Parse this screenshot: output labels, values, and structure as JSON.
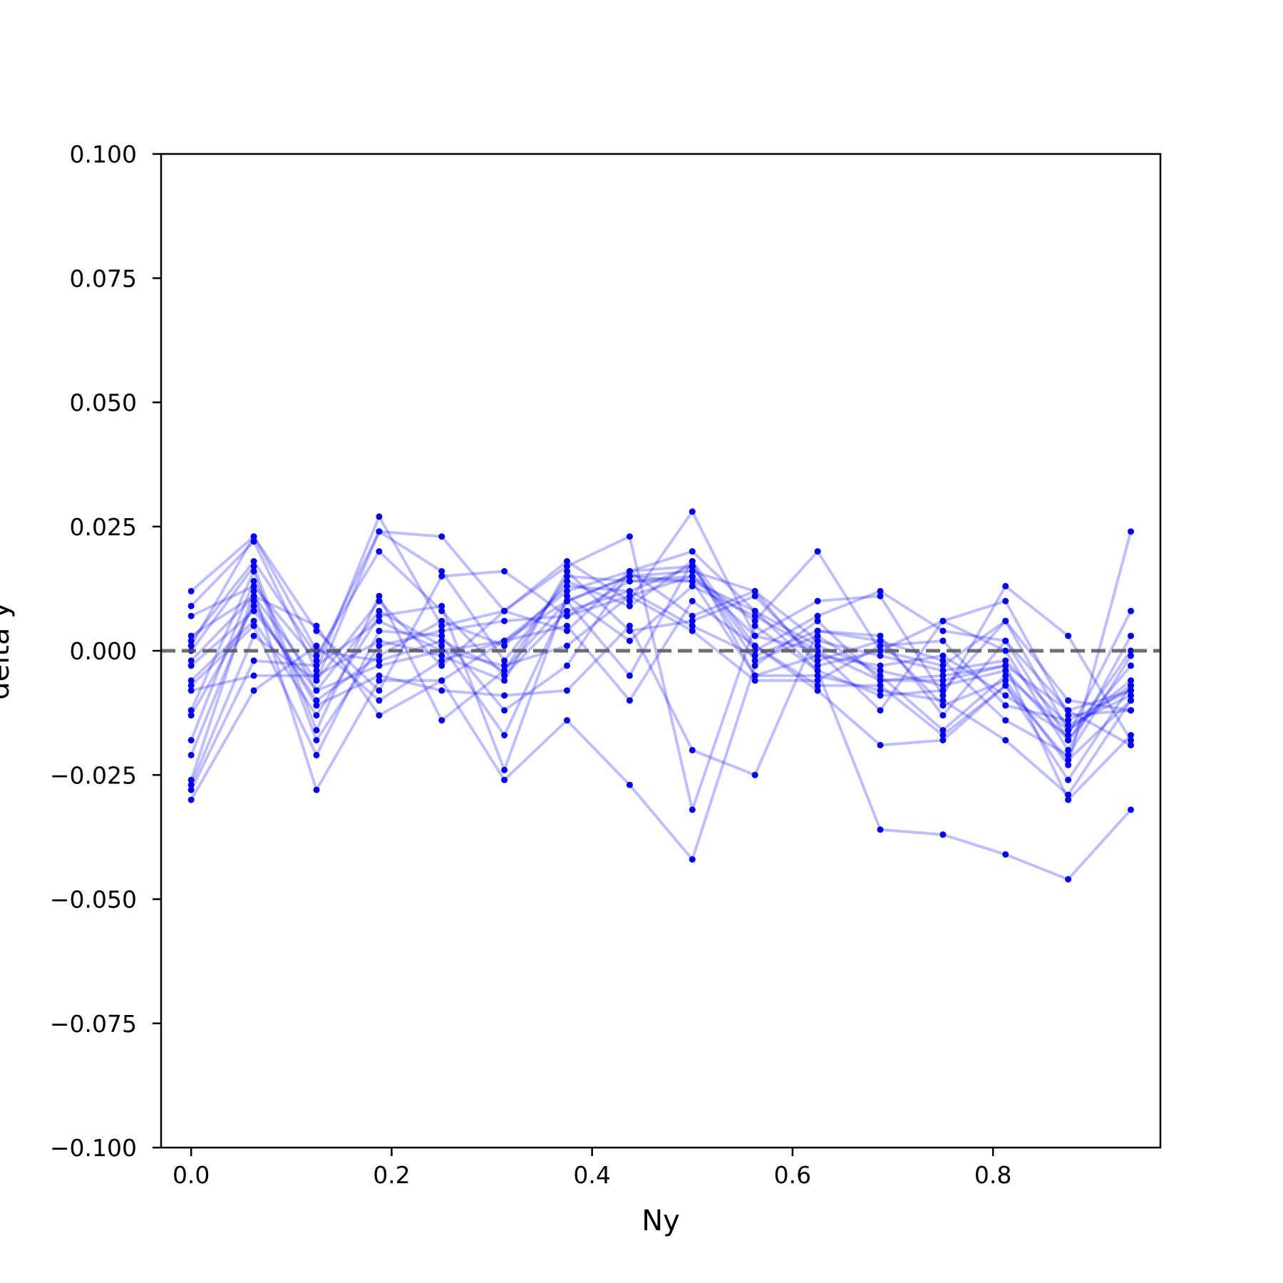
{
  "chart_data": {
    "type": "line",
    "title": "",
    "xlabel": "Ny",
    "ylabel": "delta y",
    "xlim": [
      -0.03,
      0.967
    ],
    "ylim": [
      -0.1,
      0.1
    ],
    "x_ticks": [
      0.0,
      0.2,
      0.4,
      0.6,
      0.8
    ],
    "x_tick_labels": [
      "0.0",
      "0.2",
      "0.4",
      "0.6",
      "0.8"
    ],
    "y_ticks": [
      0.1,
      0.075,
      0.05,
      0.025,
      0.0,
      -0.025,
      -0.05,
      -0.075,
      -0.1
    ],
    "y_tick_labels": [
      "0.100",
      "0.075",
      "0.050",
      "0.025",
      "0.000",
      "−0.025",
      "−0.050",
      "−0.075",
      "−0.100"
    ],
    "reference_line": {
      "y": 0.0,
      "style": "dashed",
      "color": "#555555"
    },
    "series_color": "#0000ff",
    "legend": "none",
    "grid": false,
    "x": [
      0.0,
      0.0625,
      0.125,
      0.1875,
      0.25,
      0.3125,
      0.375,
      0.4375,
      0.5,
      0.5625,
      0.625,
      0.6875,
      0.75,
      0.8125,
      0.875,
      0.9375
    ],
    "series": [
      {
        "values": [
          0.012,
          0.023,
          0.0,
          -0.002,
          0.002,
          -0.004,
          0.01,
          0.015,
          0.016,
          0.012,
          0.002,
          -0.001,
          -0.004,
          -0.002,
          -0.015,
          -0.009
        ]
      },
      {
        "values": [
          0.009,
          0.022,
          -0.004,
          0.027,
          0.005,
          0.008,
          0.018,
          0.01,
          0.028,
          0.003,
          0.0,
          -0.006,
          -0.005,
          -0.003,
          -0.012,
          -0.008
        ]
      },
      {
        "values": [
          0.007,
          0.013,
          -0.002,
          0.024,
          0.023,
          0.008,
          0.004,
          0.016,
          0.02,
          0.008,
          -0.004,
          -0.009,
          -0.008,
          0.006,
          -0.01,
          -0.012
        ]
      },
      {
        "values": [
          0.003,
          0.011,
          -0.006,
          0.024,
          0.016,
          -0.002,
          0.014,
          0.009,
          0.018,
          0.001,
          -0.007,
          -0.007,
          -0.017,
          -0.007,
          -0.022,
          -0.01
        ]
      },
      {
        "values": [
          0.002,
          0.018,
          -0.001,
          0.02,
          0.008,
          -0.005,
          0.008,
          0.012,
          0.017,
          -0.002,
          0.003,
          -0.005,
          -0.016,
          -0.005,
          -0.016,
          -0.007
        ]
      },
      {
        "values": [
          0.001,
          0.023,
          0.004,
          -0.008,
          0.015,
          0.016,
          0.007,
          0.011,
          0.015,
          0.006,
          0.02,
          0.0,
          0.006,
          0.01,
          -0.013,
          -0.012
        ]
      },
      {
        "values": [
          0.0,
          0.017,
          -0.016,
          0.011,
          -0.014,
          -0.004,
          0.015,
          0.014,
          0.015,
          0.003,
          0.01,
          0.011,
          -0.009,
          0.013,
          0.003,
          -0.018
        ]
      },
      {
        "values": [
          -0.002,
          0.011,
          0.005,
          -0.013,
          -0.006,
          0.002,
          0.012,
          0.016,
          0.017,
          0.0,
          0.007,
          0.012,
          0.004,
          0.002,
          -0.012,
          -0.019
        ]
      },
      {
        "values": [
          -0.003,
          0.008,
          -0.008,
          0.008,
          0.001,
          -0.017,
          0.01,
          0.015,
          0.014,
          0.008,
          0.001,
          -0.004,
          -0.007,
          -0.004,
          -0.018,
          -0.003
        ]
      },
      {
        "values": [
          -0.006,
          0.006,
          -0.013,
          0.007,
          0.009,
          -0.024,
          0.011,
          0.002,
          0.013,
          0.007,
          0.0,
          -0.012,
          0.006,
          0.0,
          -0.02,
          0.003
        ]
      },
      {
        "values": [
          -0.007,
          0.005,
          -0.021,
          0.004,
          0.003,
          -0.012,
          -0.003,
          0.016,
          0.007,
          0.012,
          -0.003,
          0.0,
          -0.003,
          0.006,
          -0.016,
          -0.006
        ]
      },
      {
        "values": [
          -0.008,
          -0.005,
          -0.005,
          0.002,
          -0.001,
          -0.006,
          0.016,
          0.004,
          0.006,
          0.011,
          -0.002,
          0.002,
          -0.011,
          -0.006,
          -0.023,
          0.024
        ]
      },
      {
        "values": [
          -0.012,
          0.016,
          -0.018,
          0.001,
          0.004,
          0.006,
          0.007,
          0.014,
          0.014,
          -0.005,
          -0.001,
          -0.003,
          -0.001,
          -0.009,
          -0.017,
          0.008
        ]
      },
      {
        "values": [
          -0.013,
          0.009,
          -0.01,
          -0.001,
          0.006,
          0.001,
          0.013,
          0.012,
          0.005,
          -0.001,
          0.004,
          0.003,
          -0.013,
          0.002,
          -0.018,
          0.0
        ]
      },
      {
        "values": [
          -0.018,
          0.014,
          -0.008,
          -0.003,
          0.0,
          -0.003,
          0.001,
          0.011,
          0.004,
          -0.006,
          -0.006,
          0.001,
          0.002,
          -0.011,
          -0.014,
          -0.008
        ]
      },
      {
        "values": [
          -0.021,
          0.01,
          -0.011,
          -0.005,
          -0.008,
          -0.009,
          -0.008,
          0.005,
          -0.02,
          -0.025,
          0.004,
          0.002,
          -0.002,
          -0.014,
          -0.021,
          -0.001
        ]
      },
      {
        "values": [
          -0.026,
          0.012,
          -0.028,
          -0.006,
          -0.006,
          -0.026,
          -0.014,
          -0.027,
          -0.042,
          -0.003,
          0.006,
          -0.006,
          -0.006,
          -0.003,
          -0.03,
          -0.017
        ]
      },
      {
        "values": [
          -0.027,
          0.003,
          -0.006,
          0.01,
          -0.003,
          0.008,
          0.017,
          0.023,
          -0.032,
          0.005,
          -0.004,
          -0.036,
          -0.037,
          -0.041,
          -0.046,
          -0.032
        ]
      },
      {
        "values": [
          -0.028,
          -0.002,
          -0.003,
          0.006,
          0.0,
          0.002,
          0.01,
          -0.005,
          0.018,
          -0.005,
          -0.005,
          -0.008,
          -0.01,
          -0.018,
          -0.029,
          -0.01
        ]
      },
      {
        "values": [
          -0.03,
          -0.008,
          0.001,
          -0.01,
          -0.002,
          0.002,
          0.005,
          -0.01,
          0.01,
          0.001,
          -0.008,
          -0.019,
          -0.018,
          -0.007,
          -0.026,
          -0.007
        ]
      }
    ]
  }
}
